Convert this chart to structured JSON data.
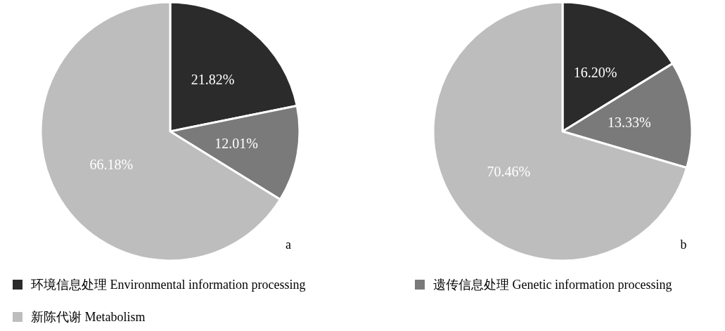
{
  "chart_data": [
    {
      "type": "pie",
      "categories": [
        "环境信息处理 Environmental information processing",
        "遗传信息处理 Genetic information processing",
        "新陈代谢 Metabolism"
      ],
      "values": [
        21.82,
        12.01,
        66.18
      ],
      "value_labels": [
        "21.82%",
        "12.01%",
        "66.18%"
      ],
      "colors": [
        "#2b2b2b",
        "#7a7a7a",
        "#bdbdbd"
      ],
      "legend": "bottom",
      "annotations": [
        "a"
      ]
    },
    {
      "type": "pie",
      "categories": [
        null,
        null,
        null
      ],
      "values": [
        16.2,
        13.33,
        70.46
      ],
      "value_labels": [
        "16.20%",
        "13.33%",
        "70.46%"
      ],
      "colors": [
        "#2b2b2b",
        "#7a7a7a",
        "#bdbdbd"
      ],
      "annotations": [
        "b"
      ]
    }
  ]
}
